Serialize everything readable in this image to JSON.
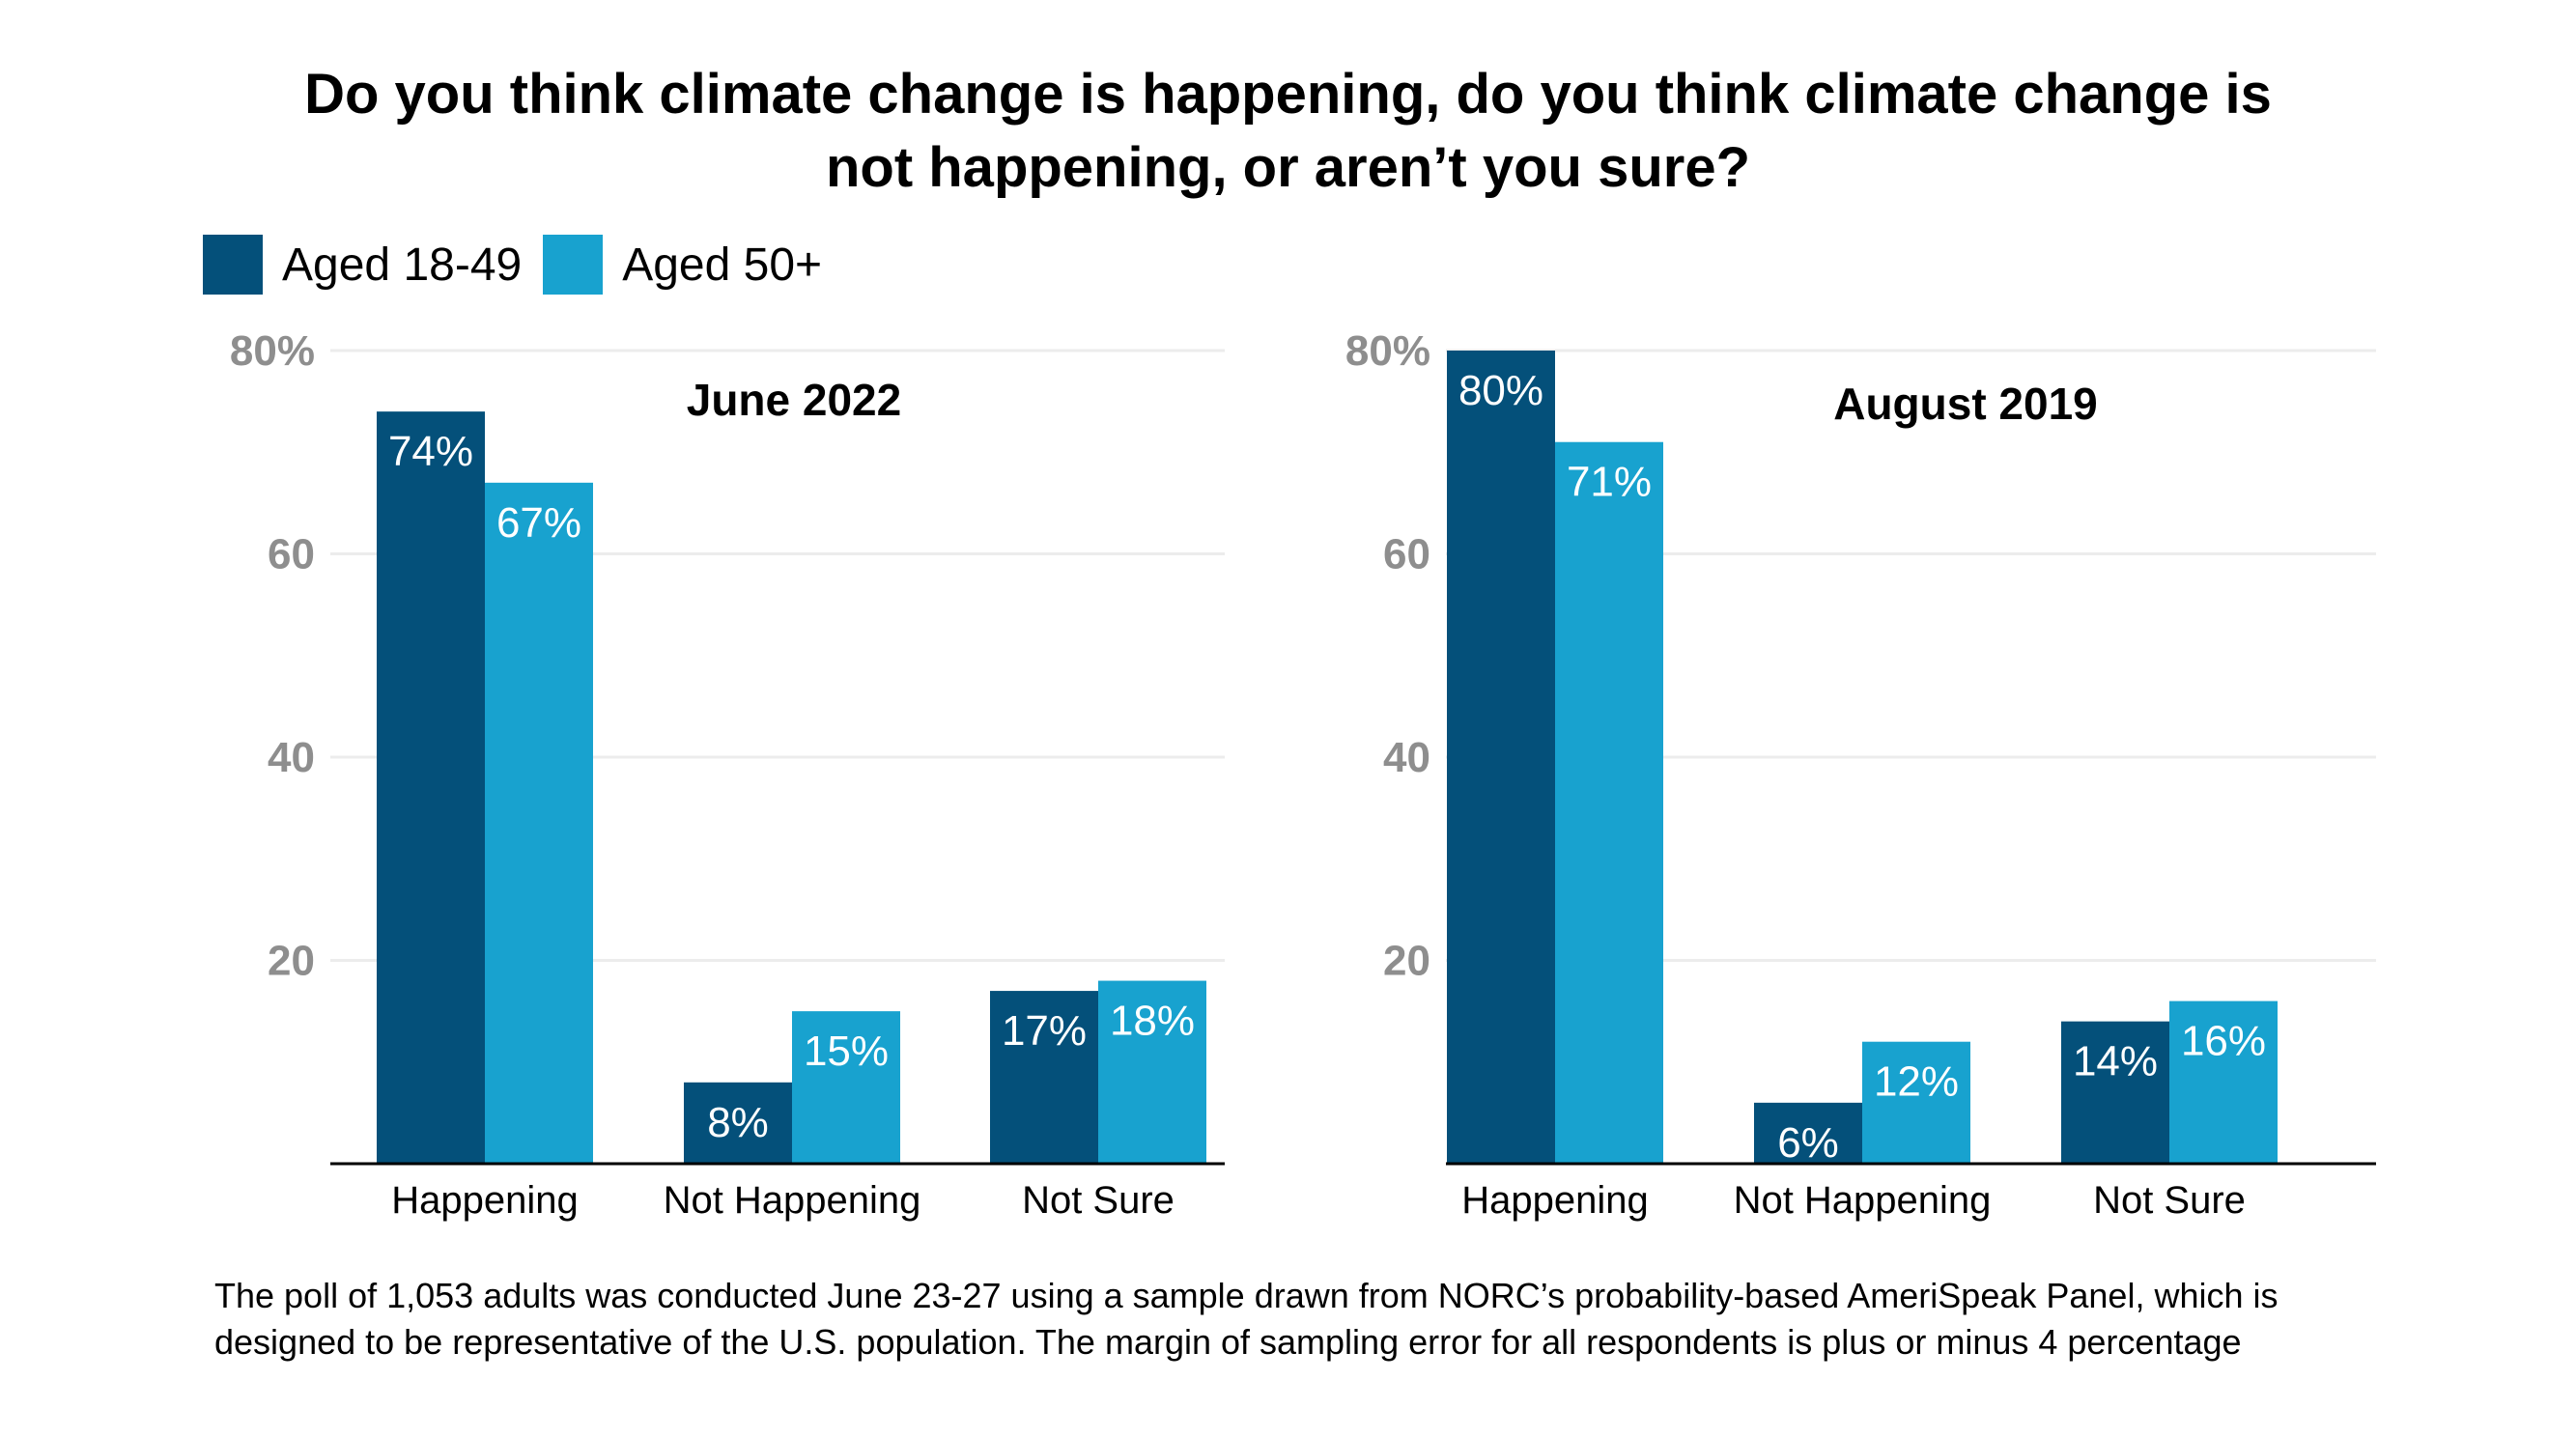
{
  "title_line1": "Do you think climate change is happening, do you think climate change is",
  "title_line2": "not happening, or aren’t you sure?",
  "legend": [
    {
      "label": "Aged 18-49",
      "color": "#04507a"
    },
    {
      "label": "Aged 50+",
      "color": "#18a2cf"
    }
  ],
  "footnote_line1": "The poll of 1,053 adults was conducted June 23-27 using a sample drawn from NORC’s probability-based AmeriSpeak Panel, which is",
  "footnote_line2": "designed to be representative of the U.S. population. The margin of sampling error for all respondents is plus or minus 4 percentage",
  "chart_data": [
    {
      "type": "bar",
      "title": "June 2022",
      "categories": [
        "Happening",
        "Not Happening",
        "Not Sure"
      ],
      "series": [
        {
          "name": "Aged 18-49",
          "values": [
            74,
            8,
            17
          ],
          "labels": [
            "74%",
            "8%",
            "17%"
          ]
        },
        {
          "name": "Aged 50+",
          "values": [
            67,
            15,
            18
          ],
          "labels": [
            "67%",
            "15%",
            "18%"
          ]
        }
      ],
      "yticks": [
        "20",
        "40",
        "60",
        "80%"
      ],
      "ytick_values": [
        20,
        40,
        60,
        80
      ],
      "ylim": [
        0,
        80
      ],
      "grid": true
    },
    {
      "type": "bar",
      "title": "August 2019",
      "categories": [
        "Happening",
        "Not Happening",
        "Not Sure"
      ],
      "series": [
        {
          "name": "Aged 18-49",
          "values": [
            80,
            6,
            14
          ],
          "labels": [
            "80%",
            "6%",
            "14%"
          ]
        },
        {
          "name": "Aged 50+",
          "values": [
            71,
            12,
            16
          ],
          "labels": [
            "71%",
            "12%",
            "16%"
          ]
        }
      ],
      "yticks": [
        "20",
        "40",
        "60",
        "80%"
      ],
      "ytick_values": [
        20,
        40,
        60,
        80
      ],
      "ylim": [
        0,
        80
      ],
      "grid": true
    }
  ]
}
